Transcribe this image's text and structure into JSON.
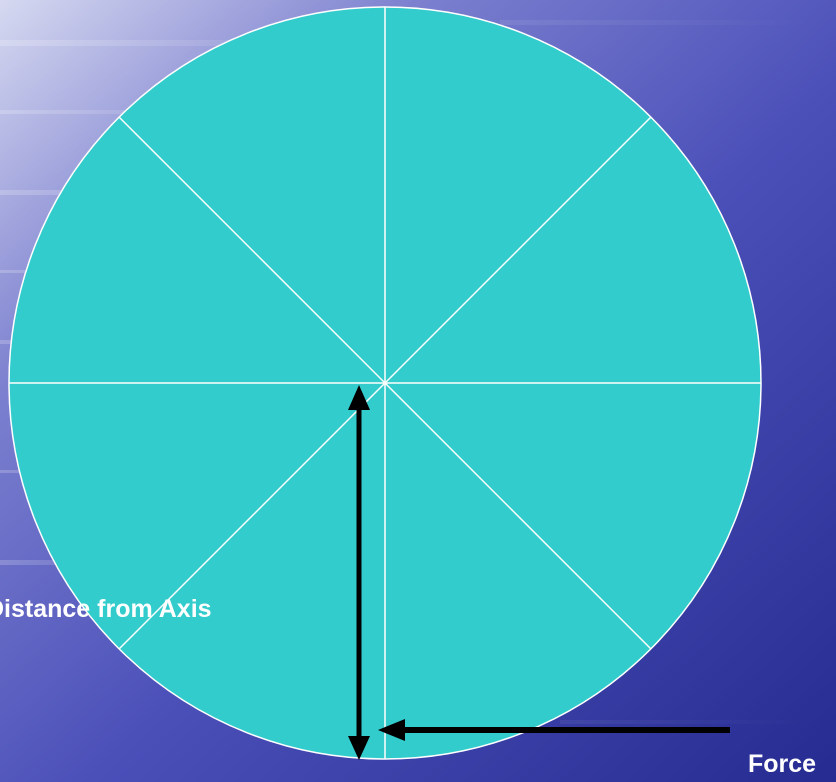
{
  "slide": {
    "background_colors": {
      "top_left": "#c8cdea",
      "mid": "#4a4fb8",
      "bottom": "#242a8e"
    },
    "wheel_color": "#33cccc",
    "spoke_color": "#ffffff",
    "arrow_color": "#000000",
    "label_color": "#ffffff"
  },
  "labels": {
    "distance": "Distance from Axis",
    "force": "Force"
  }
}
